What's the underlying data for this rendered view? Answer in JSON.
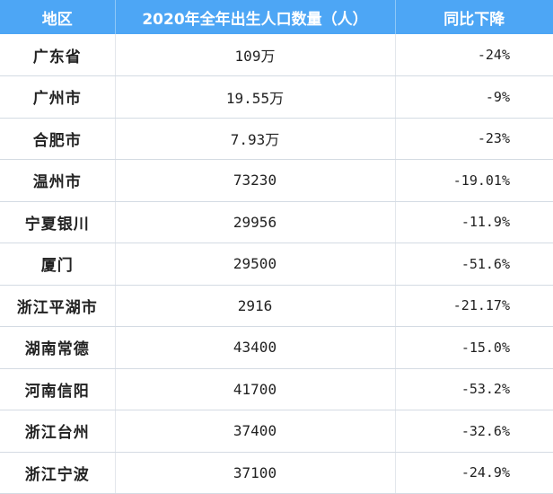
{
  "table": {
    "headers": [
      "地区",
      "2020年全年出生人口数量（人）",
      "同比下降"
    ],
    "rows": [
      {
        "region": "广东省",
        "births": "109万",
        "change": "-24%"
      },
      {
        "region": "广州市",
        "births": "19.55万",
        "change": "-9%"
      },
      {
        "region": "合肥市",
        "births": "7.93万",
        "change": "-23%"
      },
      {
        "region": "温州市",
        "births": "73230",
        "change": "-19.01%"
      },
      {
        "region": "宁夏银川",
        "births": "29956",
        "change": "-11.9%"
      },
      {
        "region": "厦门",
        "births": "29500",
        "change": "-51.6%"
      },
      {
        "region": "浙江平湖市",
        "births": "2916",
        "change": "-21.17%"
      },
      {
        "region": "湖南常德",
        "births": "43400",
        "change": "-15.0%"
      },
      {
        "region": "河南信阳",
        "births": "41700",
        "change": "-53.2%"
      },
      {
        "region": "浙江台州",
        "births": "37400",
        "change": "-32.6%"
      },
      {
        "region": "浙江宁波",
        "births": "37100",
        "change": "-24.9%"
      }
    ]
  },
  "colors": {
    "header_background": "#4da6f5",
    "header_text": "#ffffff",
    "row_divider": "#d4dbe3"
  }
}
